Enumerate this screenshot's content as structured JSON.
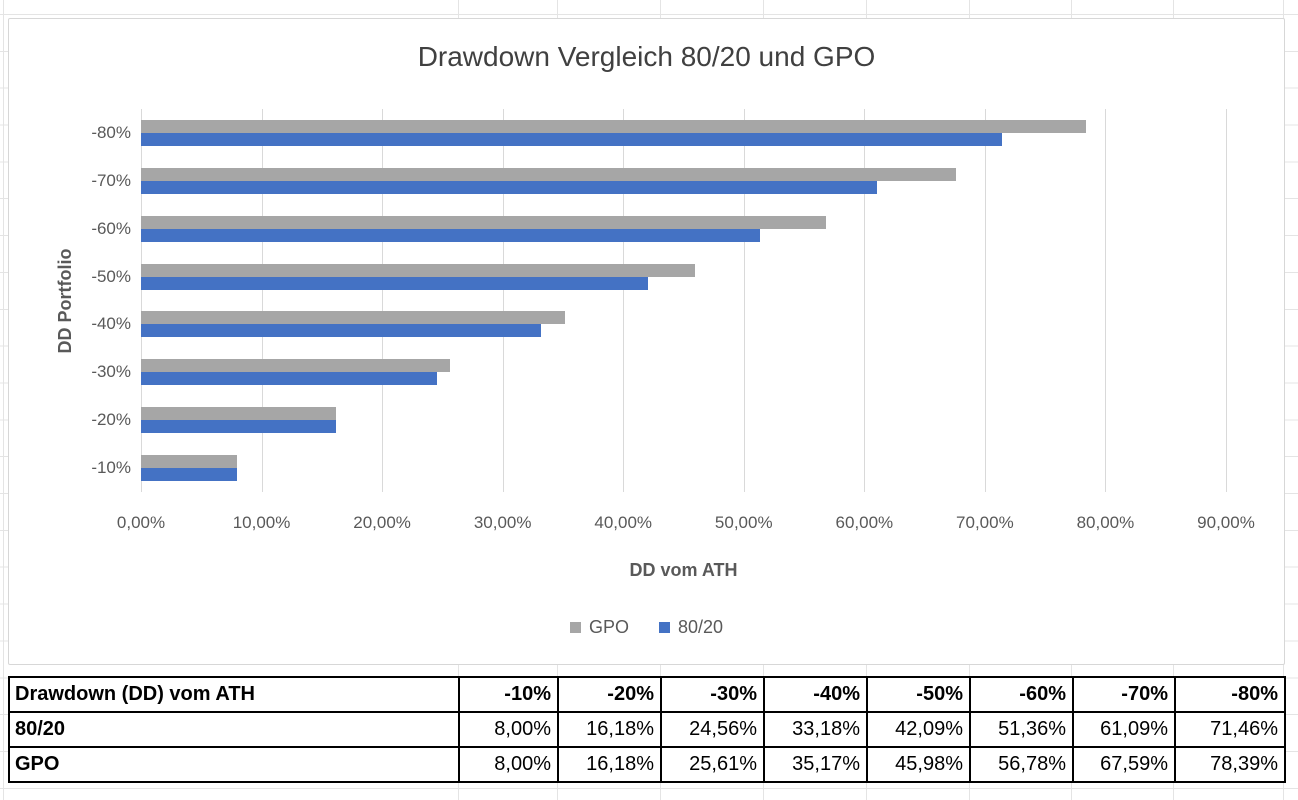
{
  "chart_data": {
    "type": "bar",
    "orientation": "horizontal",
    "title": "Drawdown Vergleich 80/20 und GPO",
    "xlabel": "DD vom ATH",
    "ylabel": "DD Portfolio",
    "categories": [
      "-80%",
      "-70%",
      "-60%",
      "-50%",
      "-40%",
      "-30%",
      "-20%",
      "-10%"
    ],
    "series": [
      {
        "name": "GPO",
        "color": "#a6a6a6",
        "values": [
          78.39,
          67.59,
          56.78,
          45.98,
          35.17,
          25.61,
          16.18,
          8.0
        ]
      },
      {
        "name": "80/20",
        "color": "#4472c4",
        "values": [
          71.46,
          61.09,
          51.36,
          42.09,
          33.18,
          24.56,
          16.18,
          8.0
        ]
      }
    ],
    "x_ticks": [
      "0,00%",
      "10,00%",
      "20,00%",
      "30,00%",
      "40,00%",
      "50,00%",
      "60,00%",
      "70,00%",
      "80,00%",
      "90,00%"
    ],
    "xlim": [
      0,
      90
    ],
    "grid": true,
    "legend_position": "bottom"
  },
  "table": {
    "header": {
      "label": "Drawdown (DD) vom ATH",
      "columns": [
        "-10%",
        "-20%",
        "-30%",
        "-40%",
        "-50%",
        "-60%",
        "-70%",
        "-80%"
      ]
    },
    "rows": [
      {
        "label": "80/20",
        "values": [
          "8,00%",
          "16,18%",
          "24,56%",
          "33,18%",
          "42,09%",
          "51,36%",
          "61,09%",
          "71,46%"
        ]
      },
      {
        "label": "GPO",
        "values": [
          "8,00%",
          "16,18%",
          "25,61%",
          "35,17%",
          "45,98%",
          "56,78%",
          "67,59%",
          "78,39%"
        ]
      }
    ]
  },
  "colors": {
    "series_gpo": "#a6a6a6",
    "series_8020": "#4472c4",
    "gridline": "#d9d9d9",
    "axis_text": "#595959",
    "title_text": "#404040"
  }
}
